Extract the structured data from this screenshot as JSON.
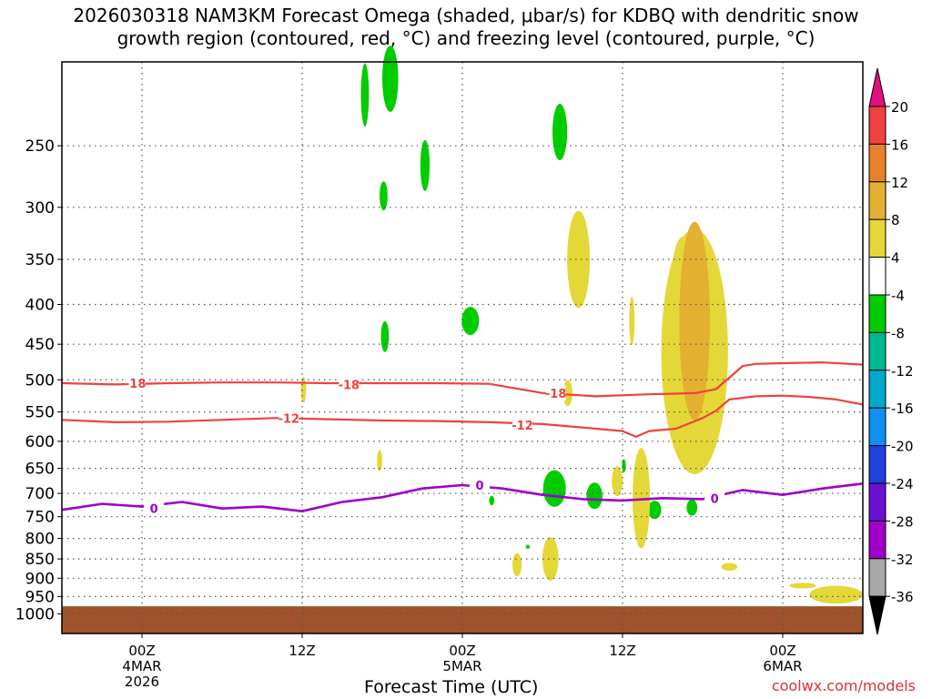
{
  "title": {
    "line1": "2026030318 NAM3KM Forecast Omega (shaded, μbar/s) for KDBQ with dendritic snow",
    "line2": "growth region (contoured, red, °C) and freezing level (contoured, purple, °C)"
  },
  "credit": "coolwx.com/models",
  "chart_data": {
    "type": "heatmap",
    "xlabel": "Forecast Time (UTC)",
    "ylabel": "",
    "x_unit": "forecast hours from 2026030318",
    "xlim": [
      0,
      60
    ],
    "ylim_hPa": [
      1000,
      200
    ],
    "x_ticks": [
      {
        "h": 6,
        "lines": [
          "00Z",
          "4MAR",
          "2026"
        ]
      },
      {
        "h": 18,
        "lines": [
          "12Z"
        ]
      },
      {
        "h": 30,
        "lines": [
          "00Z",
          "5MAR"
        ]
      },
      {
        "h": 42,
        "lines": [
          "12Z"
        ]
      },
      {
        "h": 54,
        "lines": [
          "00Z",
          "6MAR"
        ]
      }
    ],
    "y_ticks": [
      250,
      300,
      350,
      400,
      450,
      500,
      550,
      600,
      650,
      700,
      750,
      800,
      850,
      900,
      950,
      1000
    ],
    "colorbar": {
      "labels": [
        "20",
        "16",
        "12",
        "8",
        "4",
        "-4",
        "-8",
        "-12",
        "-16",
        "-20",
        "-24",
        "-28",
        "-32",
        "-36"
      ],
      "colors": [
        "#e01080",
        "#f04040",
        "#e8822a",
        "#e4b030",
        "#e4d838",
        "#ffffff",
        "#00cc00",
        "#00b890",
        "#00aacc",
        "#1090f0",
        "#2040e0",
        "#6a10d0",
        "#a000c8",
        "#a8a8a8",
        "#000000"
      ]
    },
    "contours": [
      {
        "label": "-18",
        "color": "#f04040",
        "x": [
          0,
          4,
          8,
          12,
          16,
          20,
          24,
          28,
          32,
          36,
          40,
          44,
          46,
          47.5,
          49,
          50,
          51,
          52,
          54,
          57,
          60
        ],
        "p": [
          505,
          507,
          505,
          504,
          504,
          505,
          505,
          505,
          506,
          520,
          525,
          522,
          521,
          520,
          514,
          497,
          480,
          477,
          476,
          475,
          478
        ]
      },
      {
        "label": "-12",
        "color": "#f04040",
        "x": [
          0,
          4,
          8,
          12,
          16,
          20,
          24,
          28,
          32,
          36,
          40,
          42,
          43,
          44,
          46,
          48,
          49,
          50,
          52,
          54,
          56,
          58,
          60
        ],
        "p": [
          563,
          567,
          566,
          563,
          560,
          562,
          564,
          565,
          567,
          570,
          578,
          582,
          592,
          582,
          578,
          560,
          548,
          530,
          525,
          524,
          526,
          530,
          538
        ]
      },
      {
        "label": "0",
        "color": "#a000c8",
        "x": [
          0,
          3,
          6,
          9,
          12,
          15,
          18,
          21,
          24,
          27,
          30,
          33,
          36,
          39,
          42,
          45,
          48,
          51,
          54,
          57,
          60
        ],
        "p": [
          735,
          722,
          728,
          718,
          732,
          728,
          738,
          718,
          708,
          690,
          683,
          690,
          703,
          712,
          715,
          710,
          712,
          693,
          703,
          690,
          680
        ]
      }
    ],
    "contour_labels": [
      {
        "text": "-18",
        "h": 5.5,
        "p": 505,
        "color": "#f04040"
      },
      {
        "text": "-18",
        "h": 21.5,
        "p": 507,
        "color": "#f04040"
      },
      {
        "text": "-18",
        "h": 37,
        "p": 520,
        "color": "#f04040"
      },
      {
        "text": "-12",
        "h": 17,
        "p": 560,
        "color": "#f04040"
      },
      {
        "text": "-12",
        "h": 34.5,
        "p": 572,
        "color": "#f04040"
      },
      {
        "text": "0",
        "h": 6.9,
        "p": 732,
        "color": "#a000c8"
      },
      {
        "text": "0",
        "h": 31.3,
        "p": 683,
        "color": "#a000c8"
      },
      {
        "text": "0",
        "h": 48.9,
        "p": 710,
        "color": "#a000c8"
      }
    ],
    "shaded_regions": [
      {
        "value": -8,
        "color": "#00cc00",
        "h": 22.7,
        "p": 215,
        "dh": 0.6,
        "dp": 40
      },
      {
        "value": -8,
        "color": "#00cc00",
        "h": 24.6,
        "p": 205,
        "dh": 1.2,
        "dp": 40
      },
      {
        "value": -8,
        "color": "#00cc00",
        "h": 27.2,
        "p": 265,
        "dh": 0.7,
        "dp": 40
      },
      {
        "value": -8,
        "color": "#00cc00",
        "h": 24.1,
        "p": 290,
        "dh": 0.6,
        "dp": 25
      },
      {
        "value": -8,
        "color": "#00cc00",
        "h": 24.2,
        "p": 440,
        "dh": 0.6,
        "dp": 40
      },
      {
        "value": -8,
        "color": "#00cc00",
        "h": 30.6,
        "p": 420,
        "dh": 1.3,
        "dp": 35
      },
      {
        "value": -8,
        "color": "#00cc00",
        "h": 37.3,
        "p": 240,
        "dh": 1.1,
        "dp": 40
      },
      {
        "value": -8,
        "color": "#00cc00",
        "h": 36.9,
        "p": 690,
        "dh": 1.7,
        "dp": 75
      },
      {
        "value": -8,
        "color": "#00cc00",
        "h": 39.9,
        "p": 705,
        "dh": 1.2,
        "dp": 55
      },
      {
        "value": -8,
        "color": "#00cc00",
        "h": 42.1,
        "p": 645,
        "dh": 0.3,
        "dp": 25
      },
      {
        "value": -8,
        "color": "#00cc00",
        "h": 44.4,
        "p": 735,
        "dh": 1.0,
        "dp": 40
      },
      {
        "value": -8,
        "color": "#00cc00",
        "h": 47.2,
        "p": 730,
        "dh": 0.8,
        "dp": 35
      },
      {
        "value": -8,
        "color": "#00cc00",
        "h": 32.2,
        "p": 715,
        "dh": 0.4,
        "dp": 20
      },
      {
        "value": -8,
        "color": "#00cc00",
        "h": 34.9,
        "p": 820,
        "dh": 0.3,
        "dp": 10
      },
      {
        "value": 4,
        "color": "#e4d838",
        "h": 38.7,
        "p": 350,
        "dh": 1.7,
        "dp": 100
      },
      {
        "value": 4,
        "color": "#e4d838",
        "h": 47.4,
        "p": 460,
        "dh": 5.0,
        "dp": 320
      },
      {
        "value": 4,
        "color": "#e4d838",
        "h": 46.5,
        "p": 370,
        "dh": 1.6,
        "dp": 90
      },
      {
        "value": 4,
        "color": "#e4d838",
        "h": 47.5,
        "p": 575,
        "dh": 2.0,
        "dp": 70
      },
      {
        "value": 4,
        "color": "#e4d838",
        "h": 42.7,
        "p": 420,
        "dh": 0.4,
        "dp": 60
      },
      {
        "value": 4,
        "color": "#e4d838",
        "h": 37.9,
        "p": 520,
        "dh": 0.7,
        "dp": 40
      },
      {
        "value": 4,
        "color": "#e4d838",
        "h": 18.1,
        "p": 515,
        "dh": 0.4,
        "dp": 40
      },
      {
        "value": 4,
        "color": "#e4d838",
        "h": 23.8,
        "p": 635,
        "dh": 0.4,
        "dp": 40
      },
      {
        "value": 4,
        "color": "#e4d838",
        "h": 41.6,
        "p": 675,
        "dh": 0.8,
        "dp": 60
      },
      {
        "value": 4,
        "color": "#e4d838",
        "h": 43.4,
        "p": 710,
        "dh": 1.3,
        "dp": 210
      },
      {
        "value": 4,
        "color": "#e4d838",
        "h": 36.6,
        "p": 850,
        "dh": 1.2,
        "dp": 110
      },
      {
        "value": 4,
        "color": "#e4d838",
        "h": 34.1,
        "p": 865,
        "dh": 0.7,
        "dp": 60
      },
      {
        "value": 4,
        "color": "#e4d838",
        "h": 50.0,
        "p": 870,
        "dh": 1.2,
        "dp": 20
      },
      {
        "value": 4,
        "color": "#e4d838",
        "h": 58.0,
        "p": 945,
        "dh": 4.0,
        "dp": 50
      },
      {
        "value": 4,
        "color": "#e4d838",
        "h": 55.5,
        "p": 920,
        "dh": 2.0,
        "dp": 15
      },
      {
        "value": 8,
        "color": "#e4b030",
        "h": 47.4,
        "p": 420,
        "dh": 2.3,
        "dp": 240
      }
    ],
    "terrain": {
      "color": "#a0522d",
      "p_top": 978
    }
  }
}
